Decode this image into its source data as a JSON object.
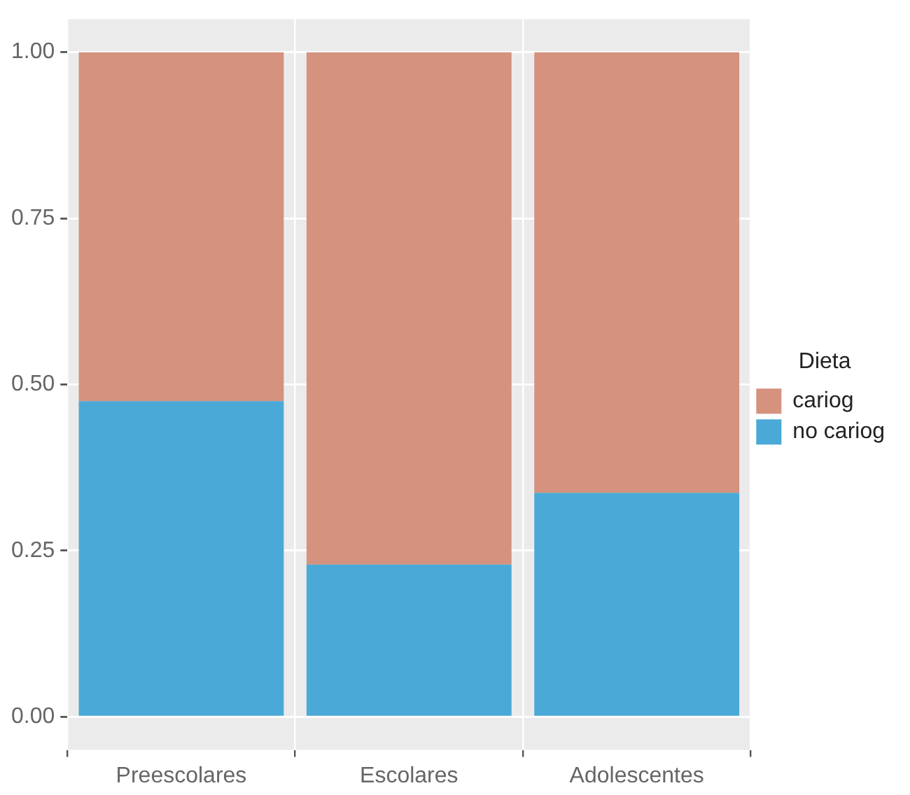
{
  "chart_data": {
    "type": "bar",
    "stacked": true,
    "legend_title": "Dieta",
    "legend": "right",
    "categories": [
      "Preescolares",
      "Escolares",
      "Adolescentes"
    ],
    "series": [
      {
        "name": "no cariog",
        "color": "#4aa9d6",
        "values": [
          0.475,
          0.229,
          0.337
        ]
      },
      {
        "name": "cariog",
        "color": "#d5927f",
        "values": [
          0.525,
          0.771,
          0.663
        ]
      }
    ],
    "ylim": [
      -0.05,
      1.05
    ],
    "yticks": [
      {
        "value": 0,
        "label": "0.00"
      },
      {
        "value": 0.25,
        "label": "0.25"
      },
      {
        "value": 0.5,
        "label": "0.50"
      },
      {
        "value": 0.75,
        "label": "0.75"
      },
      {
        "value": 1,
        "label": "1.00"
      }
    ],
    "grid": true
  }
}
